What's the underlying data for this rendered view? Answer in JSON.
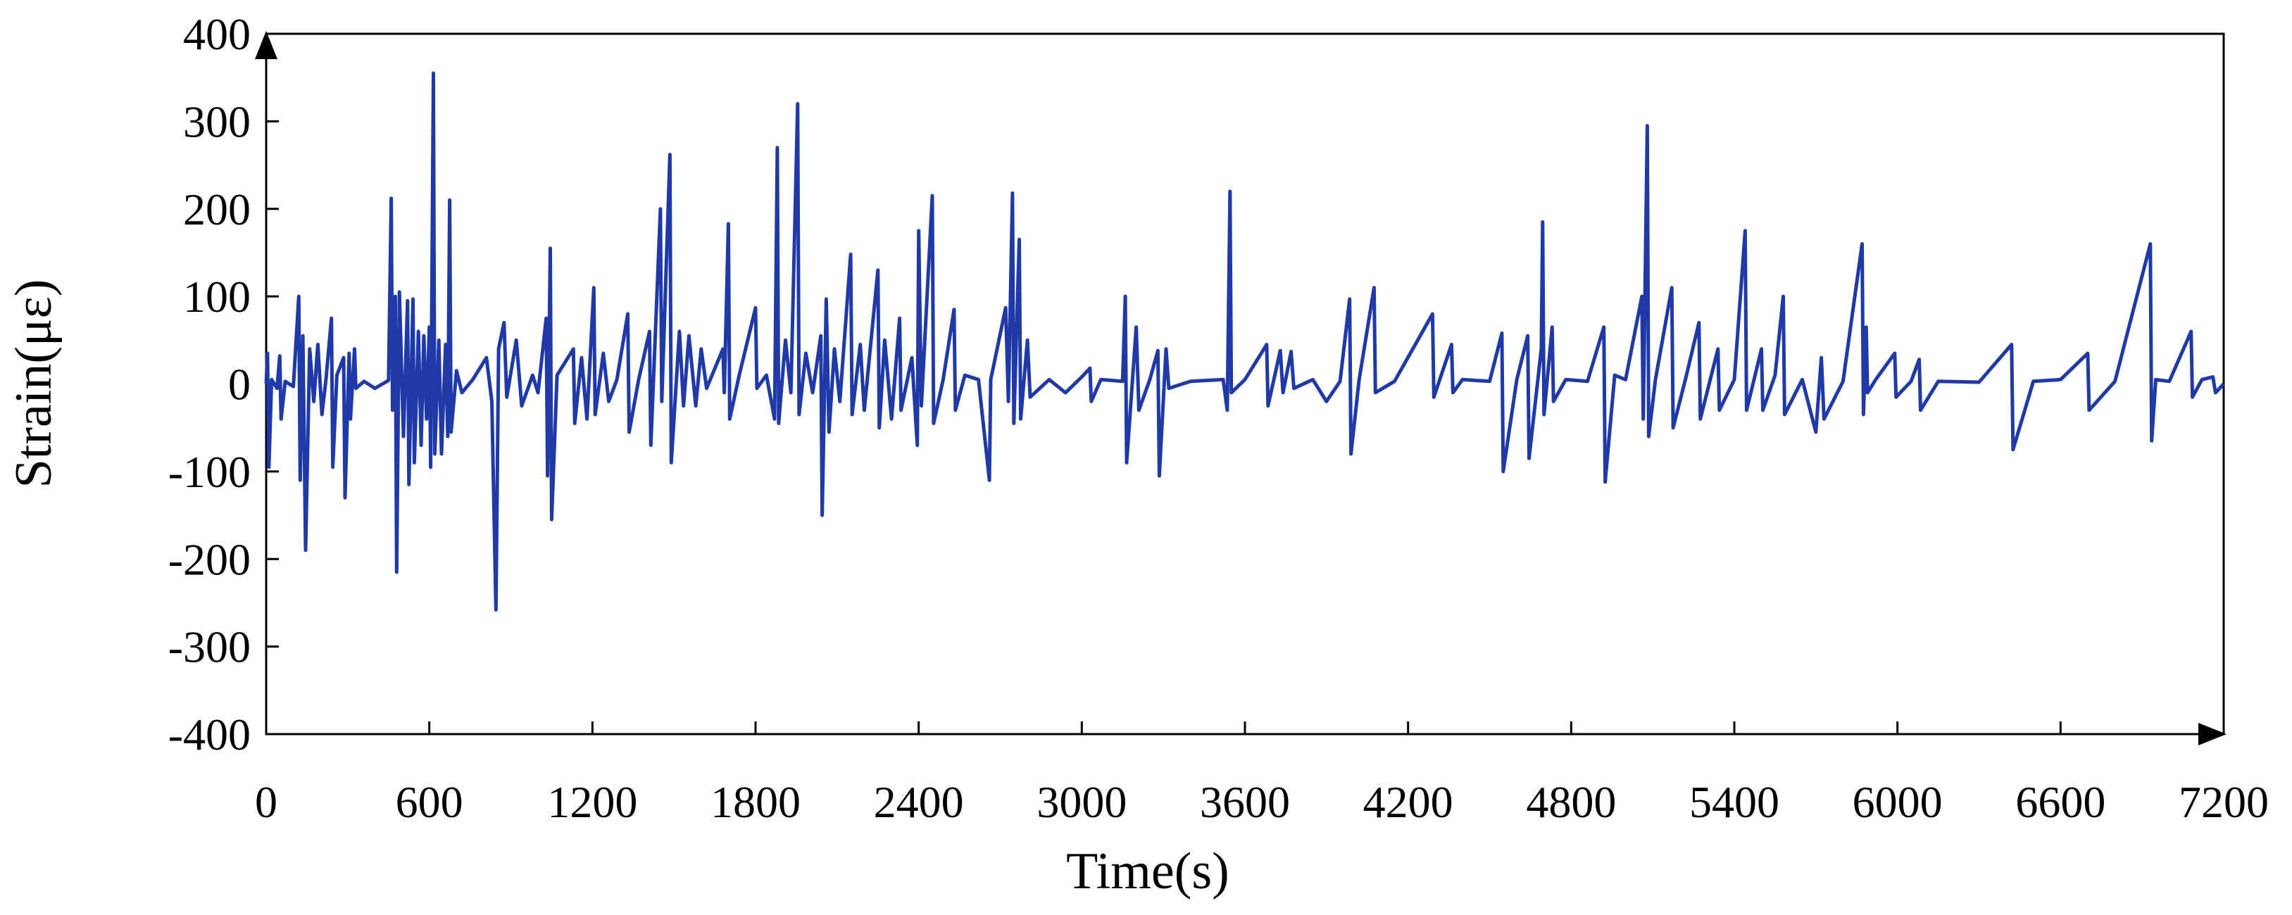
{
  "chart_data": {
    "type": "line",
    "xlabel": "Time(s)",
    "ylabel": "Strain(με)",
    "xlim": [
      0,
      7200
    ],
    "ylim": [
      -400,
      400
    ],
    "x_ticks": [
      0,
      600,
      1200,
      1800,
      2400,
      3000,
      3600,
      4200,
      4800,
      5400,
      6000,
      6600,
      7200
    ],
    "y_ticks": [
      400,
      300,
      200,
      100,
      0,
      -100,
      -200,
      -300,
      -400
    ],
    "x_tick_labels": [
      "0",
      "600",
      "1200",
      "1800",
      "2400",
      "3000",
      "3600",
      "4200",
      "4800",
      "5400",
      "6000",
      "6600",
      "7200"
    ],
    "y_tick_labels": [
      "400",
      "300",
      "200",
      "100",
      "0",
      "-100",
      "-200",
      "-300",
      "-400"
    ],
    "grid": false,
    "legend": "none",
    "colors": {
      "series": "#1f3aa8",
      "axis": "#000000"
    },
    "series": [
      {
        "points": [
          [
            0,
            0
          ],
          [
            5,
            35
          ],
          [
            10,
            -95
          ],
          [
            20,
            5
          ],
          [
            40,
            -5
          ],
          [
            50,
            32
          ],
          [
            55,
            -40
          ],
          [
            70,
            3
          ],
          [
            100,
            -3
          ],
          [
            120,
            100
          ],
          [
            125,
            -110
          ],
          [
            135,
            55
          ],
          [
            145,
            -190
          ],
          [
            160,
            40
          ],
          [
            175,
            -20
          ],
          [
            190,
            45
          ],
          [
            205,
            -35
          ],
          [
            220,
            5
          ],
          [
            240,
            75
          ],
          [
            245,
            -95
          ],
          [
            260,
            10
          ],
          [
            285,
            30
          ],
          [
            290,
            -130
          ],
          [
            305,
            35
          ],
          [
            310,
            -40
          ],
          [
            325,
            40
          ],
          [
            330,
            -5
          ],
          [
            360,
            3
          ],
          [
            400,
            -5
          ],
          [
            450,
            4
          ],
          [
            460,
            212
          ],
          [
            465,
            -30
          ],
          [
            475,
            100
          ],
          [
            480,
            -215
          ],
          [
            490,
            105
          ],
          [
            505,
            -60
          ],
          [
            520,
            95
          ],
          [
            525,
            -115
          ],
          [
            540,
            97
          ],
          [
            545,
            -90
          ],
          [
            560,
            60
          ],
          [
            570,
            -70
          ],
          [
            580,
            55
          ],
          [
            590,
            -40
          ],
          [
            600,
            65
          ],
          [
            605,
            -95
          ],
          [
            615,
            355
          ],
          [
            620,
            -80
          ],
          [
            635,
            50
          ],
          [
            645,
            -80
          ],
          [
            660,
            45
          ],
          [
            668,
            -60
          ],
          [
            675,
            210
          ],
          [
            680,
            -55
          ],
          [
            700,
            15
          ],
          [
            720,
            -10
          ],
          [
            760,
            5
          ],
          [
            810,
            30
          ],
          [
            830,
            -20
          ],
          [
            845,
            -258
          ],
          [
            855,
            40
          ],
          [
            875,
            70
          ],
          [
            885,
            -15
          ],
          [
            920,
            50
          ],
          [
            940,
            -25
          ],
          [
            980,
            10
          ],
          [
            1000,
            -10
          ],
          [
            1030,
            75
          ],
          [
            1035,
            -105
          ],
          [
            1045,
            155
          ],
          [
            1050,
            -155
          ],
          [
            1070,
            10
          ],
          [
            1130,
            40
          ],
          [
            1135,
            -45
          ],
          [
            1160,
            30
          ],
          [
            1180,
            -40
          ],
          [
            1205,
            110
          ],
          [
            1210,
            -35
          ],
          [
            1240,
            35
          ],
          [
            1260,
            -20
          ],
          [
            1290,
            5
          ],
          [
            1330,
            80
          ],
          [
            1335,
            -55
          ],
          [
            1370,
            5
          ],
          [
            1410,
            60
          ],
          [
            1415,
            -70
          ],
          [
            1450,
            200
          ],
          [
            1455,
            -20
          ],
          [
            1485,
            262
          ],
          [
            1490,
            -90
          ],
          [
            1520,
            60
          ],
          [
            1535,
            -25
          ],
          [
            1555,
            55
          ],
          [
            1580,
            -25
          ],
          [
            1600,
            40
          ],
          [
            1620,
            -5
          ],
          [
            1680,
            40
          ],
          [
            1685,
            -10
          ],
          [
            1700,
            183
          ],
          [
            1705,
            -40
          ],
          [
            1740,
            10
          ],
          [
            1800,
            87
          ],
          [
            1805,
            -5
          ],
          [
            1840,
            10
          ],
          [
            1870,
            -40
          ],
          [
            1880,
            270
          ],
          [
            1885,
            -45
          ],
          [
            1910,
            50
          ],
          [
            1930,
            -10
          ],
          [
            1955,
            320
          ],
          [
            1960,
            -35
          ],
          [
            1985,
            35
          ],
          [
            2010,
            -10
          ],
          [
            2040,
            55
          ],
          [
            2045,
            -150
          ],
          [
            2060,
            97
          ],
          [
            2070,
            -55
          ],
          [
            2090,
            40
          ],
          [
            2110,
            -20
          ],
          [
            2150,
            148
          ],
          [
            2155,
            -35
          ],
          [
            2185,
            45
          ],
          [
            2200,
            -30
          ],
          [
            2250,
            130
          ],
          [
            2255,
            -50
          ],
          [
            2275,
            50
          ],
          [
            2300,
            -40
          ],
          [
            2330,
            75
          ],
          [
            2335,
            -30
          ],
          [
            2375,
            30
          ],
          [
            2395,
            -70
          ],
          [
            2400,
            175
          ],
          [
            2410,
            -25
          ],
          [
            2450,
            215
          ],
          [
            2455,
            -45
          ],
          [
            2490,
            5
          ],
          [
            2530,
            85
          ],
          [
            2535,
            -30
          ],
          [
            2570,
            10
          ],
          [
            2620,
            5
          ],
          [
            2660,
            -110
          ],
          [
            2665,
            5
          ],
          [
            2720,
            87
          ],
          [
            2730,
            -20
          ],
          [
            2745,
            218
          ],
          [
            2750,
            -45
          ],
          [
            2770,
            165
          ],
          [
            2775,
            -40
          ],
          [
            2800,
            50
          ],
          [
            2810,
            -15
          ],
          [
            2880,
            5
          ],
          [
            2940,
            -10
          ],
          [
            3000,
            8
          ],
          [
            3030,
            18
          ],
          [
            3035,
            -20
          ],
          [
            3070,
            5
          ],
          [
            3150,
            3
          ],
          [
            3160,
            100
          ],
          [
            3165,
            -90
          ],
          [
            3200,
            65
          ],
          [
            3210,
            -30
          ],
          [
            3250,
            5
          ],
          [
            3280,
            38
          ],
          [
            3285,
            -105
          ],
          [
            3310,
            40
          ],
          [
            3320,
            -5
          ],
          [
            3400,
            3
          ],
          [
            3520,
            5
          ],
          [
            3535,
            -30
          ],
          [
            3545,
            220
          ],
          [
            3550,
            -10
          ],
          [
            3600,
            5
          ],
          [
            3680,
            45
          ],
          [
            3685,
            -25
          ],
          [
            3730,
            38
          ],
          [
            3740,
            -10
          ],
          [
            3770,
            37
          ],
          [
            3780,
            -5
          ],
          [
            3850,
            5
          ],
          [
            3900,
            -20
          ],
          [
            3950,
            3
          ],
          [
            3985,
            97
          ],
          [
            3990,
            -80
          ],
          [
            4020,
            5
          ],
          [
            4075,
            110
          ],
          [
            4080,
            -10
          ],
          [
            4150,
            3
          ],
          [
            4290,
            80
          ],
          [
            4295,
            -15
          ],
          [
            4360,
            45
          ],
          [
            4365,
            -10
          ],
          [
            4400,
            5
          ],
          [
            4500,
            3
          ],
          [
            4545,
            58
          ],
          [
            4550,
            -100
          ],
          [
            4600,
            5
          ],
          [
            4640,
            55
          ],
          [
            4645,
            -85
          ],
          [
            4690,
            40
          ],
          [
            4695,
            185
          ],
          [
            4700,
            -35
          ],
          [
            4730,
            65
          ],
          [
            4735,
            -20
          ],
          [
            4780,
            5
          ],
          [
            4860,
            3
          ],
          [
            4920,
            65
          ],
          [
            4925,
            -112
          ],
          [
            4960,
            10
          ],
          [
            5000,
            5
          ],
          [
            5060,
            100
          ],
          [
            5065,
            -40
          ],
          [
            5080,
            295
          ],
          [
            5085,
            -60
          ],
          [
            5110,
            5
          ],
          [
            5170,
            110
          ],
          [
            5175,
            -50
          ],
          [
            5220,
            5
          ],
          [
            5270,
            70
          ],
          [
            5275,
            -40
          ],
          [
            5340,
            40
          ],
          [
            5345,
            -30
          ],
          [
            5400,
            5
          ],
          [
            5440,
            175
          ],
          [
            5445,
            -30
          ],
          [
            5500,
            40
          ],
          [
            5505,
            -30
          ],
          [
            5550,
            10
          ],
          [
            5580,
            100
          ],
          [
            5585,
            -35
          ],
          [
            5650,
            5
          ],
          [
            5700,
            -55
          ],
          [
            5720,
            30
          ],
          [
            5730,
            -40
          ],
          [
            5800,
            3
          ],
          [
            5870,
            160
          ],
          [
            5875,
            -35
          ],
          [
            5885,
            65
          ],
          [
            5890,
            -10
          ],
          [
            5920,
            5
          ],
          [
            5990,
            35
          ],
          [
            5995,
            -15
          ],
          [
            6050,
            3
          ],
          [
            6080,
            28
          ],
          [
            6085,
            -30
          ],
          [
            6150,
            3
          ],
          [
            6300,
            2
          ],
          [
            6420,
            45
          ],
          [
            6425,
            -75
          ],
          [
            6500,
            3
          ],
          [
            6600,
            5
          ],
          [
            6700,
            35
          ],
          [
            6705,
            -30
          ],
          [
            6800,
            3
          ],
          [
            6930,
            160
          ],
          [
            6935,
            -65
          ],
          [
            6950,
            5
          ],
          [
            7000,
            3
          ],
          [
            7080,
            60
          ],
          [
            7085,
            -15
          ],
          [
            7120,
            5
          ],
          [
            7160,
            8
          ],
          [
            7170,
            -10
          ],
          [
            7200,
            0
          ]
        ]
      }
    ]
  }
}
